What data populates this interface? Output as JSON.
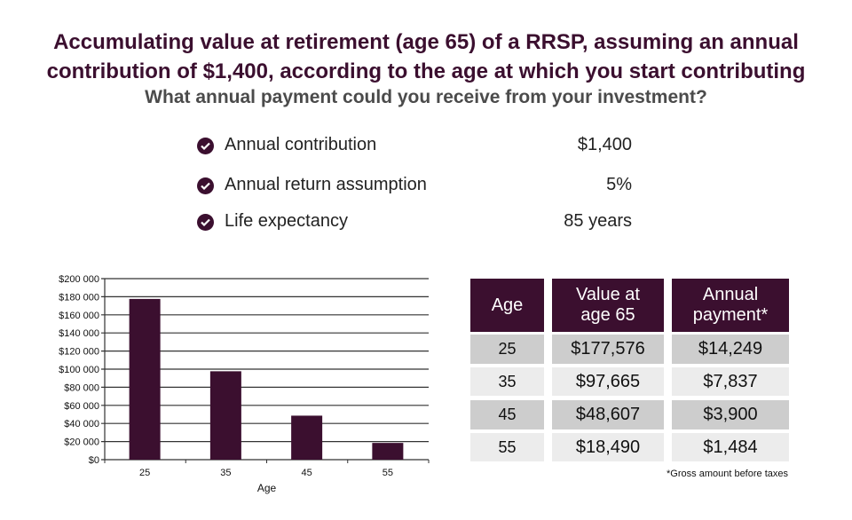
{
  "header": {
    "title_line1": "Accumulating value at retirement (age 65) of a RRSP, assuming an annual",
    "title_line2": "contribution of $1,400, according to the age at which you start contributing",
    "subtitle": "What annual payment could you receive from your investment?"
  },
  "assumptions": [
    {
      "icon": "check-circle-icon",
      "label": "Annual contribution",
      "value": "$1,400"
    },
    {
      "icon": "check-circle-icon",
      "label": "Annual return assumption",
      "value": "5%"
    },
    {
      "icon": "check-circle-icon",
      "label": "Life expectancy",
      "value": "85 years"
    }
  ],
  "colors": {
    "accent": "#3b0f2f",
    "row_dark": "#cdcdcd",
    "row_light": "#ececec"
  },
  "chart_data": {
    "type": "bar",
    "title": "",
    "xlabel": "Age",
    "ylabel": "",
    "categories": [
      "25",
      "35",
      "45",
      "55"
    ],
    "values": [
      177576,
      97665,
      48607,
      18490
    ],
    "ylim": [
      0,
      200000
    ],
    "yticks": [
      0,
      20000,
      40000,
      60000,
      80000,
      100000,
      120000,
      140000,
      160000,
      180000,
      200000
    ],
    "ytick_labels": [
      "$0",
      "$20 000",
      "$40 000",
      "$60 000",
      "$80 000",
      "$100 000",
      "$120 000",
      "$140 000",
      "$160 000",
      "$180 000",
      "$200 000"
    ],
    "grid": true,
    "legend": "none"
  },
  "table": {
    "headers": [
      "Age",
      "Value at age 65",
      "Annual payment*"
    ],
    "rows": [
      [
        "25",
        "$177,576",
        "$14,249"
      ],
      [
        "35",
        "$97,665",
        "$7,837"
      ],
      [
        "45",
        "$48,607",
        "$3,900"
      ],
      [
        "55",
        "$18,490",
        "$1,484"
      ]
    ],
    "footnote": "*Gross amount before taxes"
  }
}
